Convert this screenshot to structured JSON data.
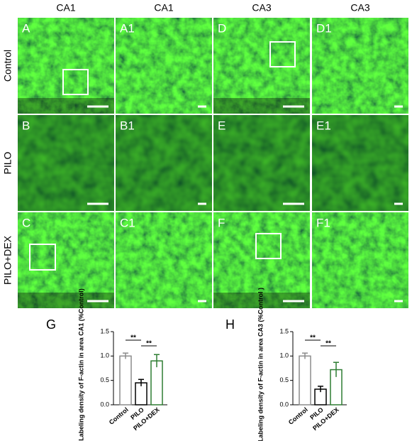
{
  "columns": [
    "CA1",
    "CA1",
    "CA3",
    "CA3"
  ],
  "rows": [
    "Control",
    "PILO",
    "PILO+DEX"
  ],
  "panels": [
    [
      "A",
      "A1",
      "D",
      "D1"
    ],
    [
      "B",
      "B1",
      "E",
      "E1"
    ],
    [
      "C",
      "C1",
      "F",
      "F1"
    ]
  ],
  "chart_data": [
    {
      "type": "bar",
      "panel": "G",
      "ylabel": "Labeling density of F-actin in area CA1 (%Control)",
      "categories": [
        "Control",
        "PILO",
        "PILO+DEX"
      ],
      "values": [
        1.0,
        0.45,
        0.9
      ],
      "errors": [
        0.06,
        0.07,
        0.13
      ],
      "colors": [
        "#8c8c8c",
        "#000000",
        "#2e7d32"
      ],
      "ylim": [
        0,
        1.5
      ],
      "yticks": [
        {
          "value": 0,
          "label": "0.0"
        },
        {
          "value": 0.5,
          "label": "0.5"
        },
        {
          "value": 1,
          "label": "1.0"
        },
        {
          "value": 1.5,
          "label": "1.5"
        }
      ],
      "annotations": [
        "**",
        "**"
      ]
    },
    {
      "type": "bar",
      "panel": "H",
      "ylabel": "Labeling density of F-actin in area CA3 (%Control )",
      "categories": [
        "Control",
        "PILO",
        "PILO+DEX"
      ],
      "values": [
        1.0,
        0.32,
        0.72
      ],
      "errors": [
        0.06,
        0.06,
        0.15
      ],
      "colors": [
        "#8c8c8c",
        "#000000",
        "#2e7d32"
      ],
      "ylim": [
        0,
        1.5
      ],
      "yticks": [
        {
          "value": 0,
          "label": "0.0"
        },
        {
          "value": 0.5,
          "label": "0.5"
        },
        {
          "value": 1,
          "label": "1.0"
        },
        {
          "value": 1.5,
          "label": "1.5"
        }
      ],
      "annotations": [
        "**",
        "**"
      ]
    }
  ]
}
